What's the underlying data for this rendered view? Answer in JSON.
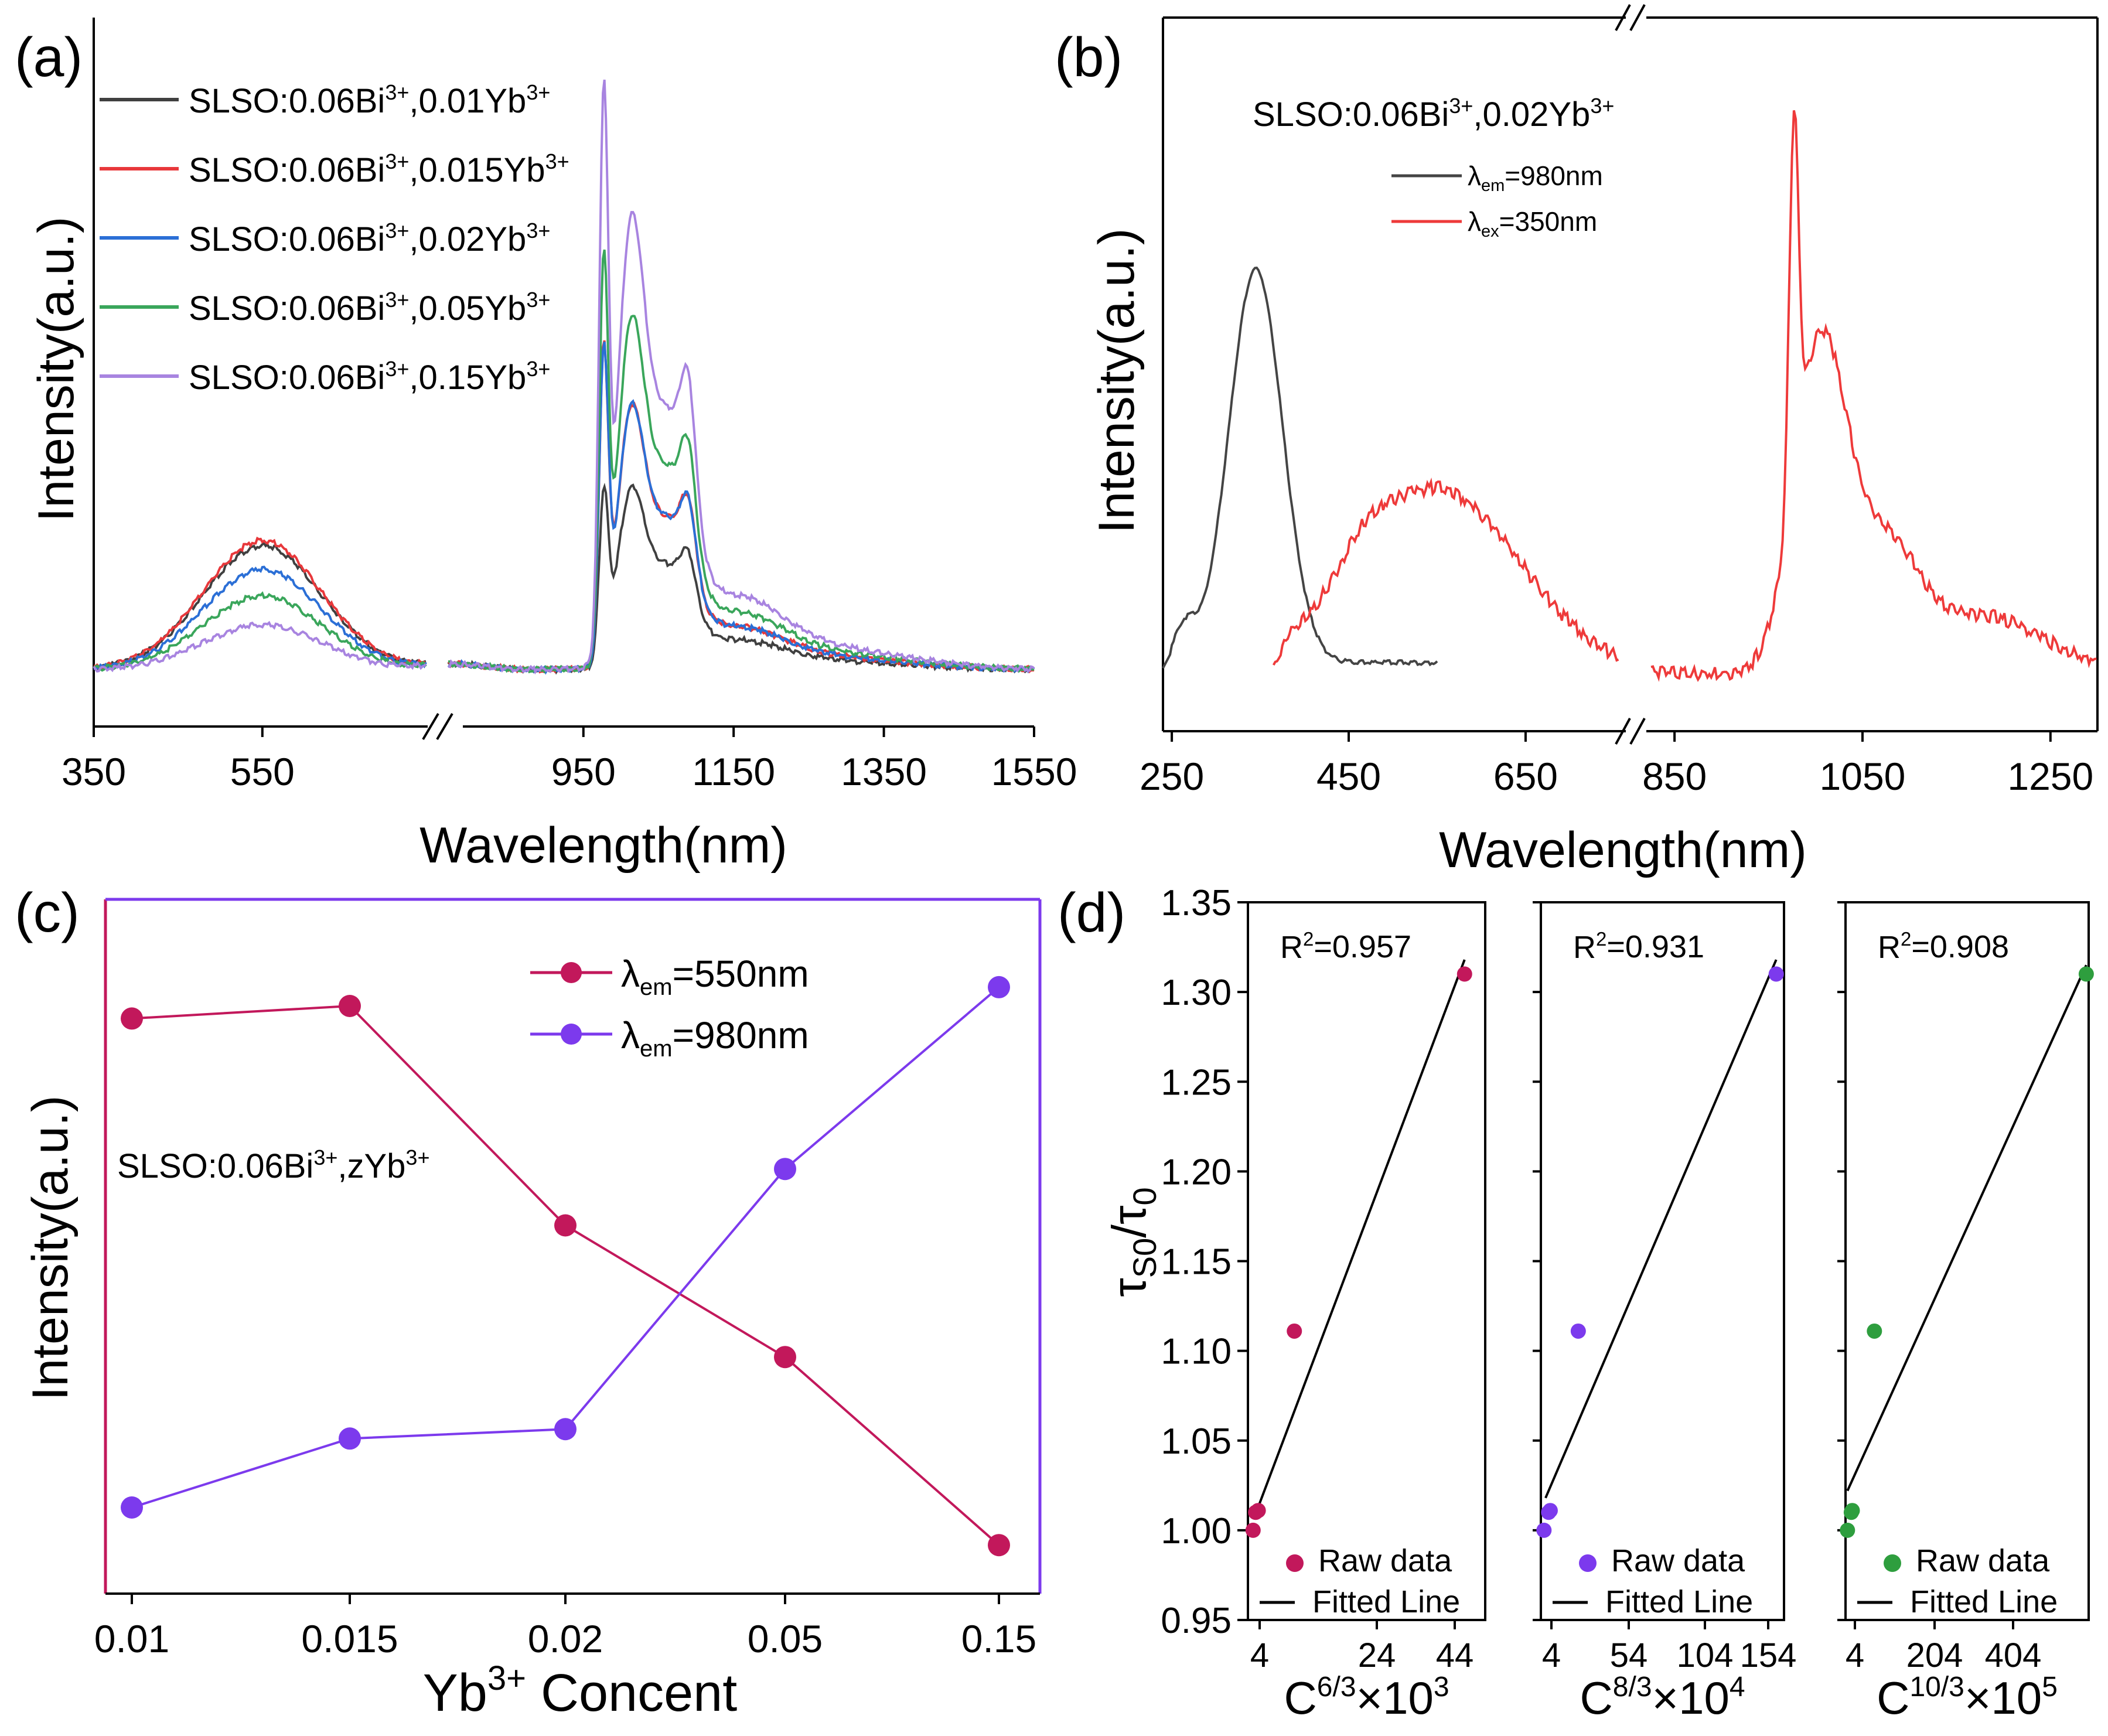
{
  "panels": {
    "a": {
      "letter": "(a)",
      "ylabel": "Intensity(a.u.)",
      "xlabel": "Wavelength(nm)",
      "xticks": [
        "350",
        "550",
        "950",
        "1150",
        "1350",
        "1550"
      ],
      "legend": [
        {
          "base": "SLSO:0.06Bi",
          "sup1": "3+",
          "mid": ",0.01Yb",
          "sup2": "3+",
          "color": "#404040"
        },
        {
          "base": "SLSO:0.06Bi",
          "sup1": "3+",
          "mid": ",0.015Yb",
          "sup2": "3+",
          "color": "#e8383b"
        },
        {
          "base": "SLSO:0.06Bi",
          "sup1": "3+",
          "mid": ",0.02Yb",
          "sup2": "3+",
          "color": "#2b6fd6"
        },
        {
          "base": "SLSO:0.06Bi",
          "sup1": "3+",
          "mid": ",0.05Yb",
          "sup2": "3+",
          "color": "#3aa65b"
        },
        {
          "base": "SLSO:0.06Bi",
          "sup1": "3+",
          "mid": ",0.15Yb",
          "sup2": "3+",
          "color": "#a884e0"
        }
      ]
    },
    "b": {
      "letter": "(b)",
      "ylabel": "Intensity(a.u.)",
      "xlabel": "Wavelength(nm)",
      "xticks": [
        "250",
        "450",
        "650",
        "850",
        "1050",
        "1250"
      ],
      "annotation": {
        "base": "SLSO:0.06Bi",
        "sup1": "3+",
        "mid": ",0.02Yb",
        "sup2": "3+"
      },
      "legend": [
        {
          "lambda": "λ",
          "sub": "em",
          "rest": "=980nm",
          "color": "#444444"
        },
        {
          "lambda": "λ",
          "sub": "ex",
          "rest": "=350nm",
          "color": "#ee3a3a"
        }
      ]
    },
    "c": {
      "letter": "(c)",
      "ylabel": "Intensity(a.u.)",
      "xlabel_pre": "Yb",
      "xlabel_sup": "3+",
      "xlabel_post": " Concent",
      "annotation": {
        "base": "SLSO:0.06Bi",
        "sup1": "3+",
        "mid": ",zYb",
        "sup2": "3+"
      },
      "legend": [
        {
          "lambda": "λ",
          "sub": "em",
          "rest": "=550nm",
          "color": "#c2185b"
        },
        {
          "lambda": "λ",
          "sub": "em",
          "rest": "=980nm",
          "color": "#7c3aed"
        }
      ]
    },
    "d": {
      "letter": "(d)",
      "ylabel_tau": "τ",
      "ylabel_sub1": "S0",
      "ylabel_slash": "/τ",
      "ylabel_sub2": "0",
      "yticks": [
        "0.95",
        "1.00",
        "1.05",
        "1.10",
        "1.15",
        "1.20",
        "1.25",
        "1.30",
        "1.35"
      ],
      "legend_raw": "Raw data",
      "legend_fit": "Fitted Line",
      "subplots": [
        {
          "r2_pre": "R",
          "r2_sup": "2",
          "r2_val": "=0.957",
          "xticks": [
            "4",
            "24",
            "44"
          ],
          "xl_base": "C",
          "xl_sup": "6/3",
          "xl_mid": "×10",
          "xl_exp": "3",
          "color": "#c2185b"
        },
        {
          "r2_pre": "R",
          "r2_sup": "2",
          "r2_val": "=0.931",
          "xticks": [
            "4",
            "54",
            "104",
            "154"
          ],
          "xl_base": "C",
          "xl_sup": "8/3",
          "xl_mid": "×10",
          "xl_exp": "4",
          "color": "#7c3aed"
        },
        {
          "r2_pre": "R",
          "r2_sup": "2",
          "r2_val": "=0.908",
          "xticks": [
            "4",
            "204",
            "404"
          ],
          "xl_base": "C",
          "xl_sup": "10/3",
          "xl_mid": "×10",
          "xl_exp": "5",
          "color": "#2e9e3e"
        }
      ]
    }
  },
  "chart_data": [
    {
      "panel": "a",
      "type": "line",
      "x_range": [
        350,
        1550
      ],
      "axis_break": [
        750,
        800
      ],
      "series": [
        {
          "name": "SLSO:0.06Bi3+,0.01Yb3+",
          "color": "#404040",
          "peak_vis": 0.235,
          "peak_980": 0.3,
          "peak_1010": 0.29
        },
        {
          "name": "SLSO:0.06Bi3+,0.015Yb3+",
          "color": "#e8383b",
          "peak_vis": 0.245,
          "peak_980": 0.55,
          "peak_1010": 0.42
        },
        {
          "name": "SLSO:0.06Bi3+,0.02Yb3+",
          "color": "#2b6fd6",
          "peak_vis": 0.19,
          "peak_980": 0.55,
          "peak_1010": 0.42
        },
        {
          "name": "SLSO:0.06Bi3+,0.05Yb3+",
          "color": "#3aa65b",
          "peak_vis": 0.14,
          "peak_980": 0.7,
          "peak_1010": 0.56
        },
        {
          "name": "SLSO:0.06Bi3+,0.15Yb3+",
          "color": "#a884e0",
          "peak_vis": 0.085,
          "peak_980": 1.0,
          "peak_1010": 0.72
        }
      ]
    },
    {
      "panel": "b",
      "type": "line",
      "x_range": [
        240,
        1300
      ],
      "axis_break": [
        760,
        820
      ],
      "series": [
        {
          "name": "λem=980nm",
          "color": "#444444",
          "x_range": [
            240,
            550
          ],
          "peak_x": 345,
          "peak_y": 0.7
        },
        {
          "name": "λex=350nm",
          "color": "#ee3a3a",
          "x_range": [
            365,
            1300
          ],
          "peak_vis_x": 548,
          "peak_vis_y": 0.32,
          "peak_nir_x": 980,
          "peak_nir_y": 1.0
        }
      ]
    },
    {
      "panel": "c",
      "type": "line",
      "categories": [
        "0.01",
        "0.015",
        "0.02",
        "0.05",
        "0.15"
      ],
      "series": [
        {
          "name": "λem=550nm",
          "color": "#c2185b",
          "values": [
            0.88,
            0.9,
            0.55,
            0.34,
            0.04
          ]
        },
        {
          "name": "λem=980nm",
          "color": "#7c3aed",
          "values": [
            0.1,
            0.21,
            0.225,
            0.64,
            0.93
          ]
        }
      ]
    },
    {
      "panel": "d",
      "type": "scatter",
      "ylim": [
        0.95,
        1.35
      ],
      "series": [
        {
          "name": "C6/3×10^3",
          "xlim": [
            2,
            48
          ],
          "x": [
            3,
            3.5,
            4,
            11,
            44
          ],
          "y": [
            1.0,
            1.01,
            1.011,
            1.111,
            1.31
          ],
          "fit": [
            [
              4,
              1.013
            ],
            [
              44,
              1.318
            ]
          ]
        },
        {
          "name": "C8/3×10^4",
          "xlim": [
            1,
            157
          ],
          "x": [
            3,
            6,
            7,
            25,
            152
          ],
          "y": [
            1.0,
            1.01,
            1.011,
            1.111,
            1.31
          ],
          "fit": [
            [
              4,
              1.018
            ],
            [
              152,
              1.318
            ]
          ]
        },
        {
          "name": "C10/3×10^5",
          "xlim": [
            0,
            505
          ],
          "x": [
            4,
            12,
            14,
            60,
            500
          ],
          "y": [
            1.0,
            1.01,
            1.011,
            1.111,
            1.31
          ],
          "fit": [
            [
              4,
              1.022
            ],
            [
              500,
              1.315
            ]
          ]
        }
      ]
    }
  ]
}
